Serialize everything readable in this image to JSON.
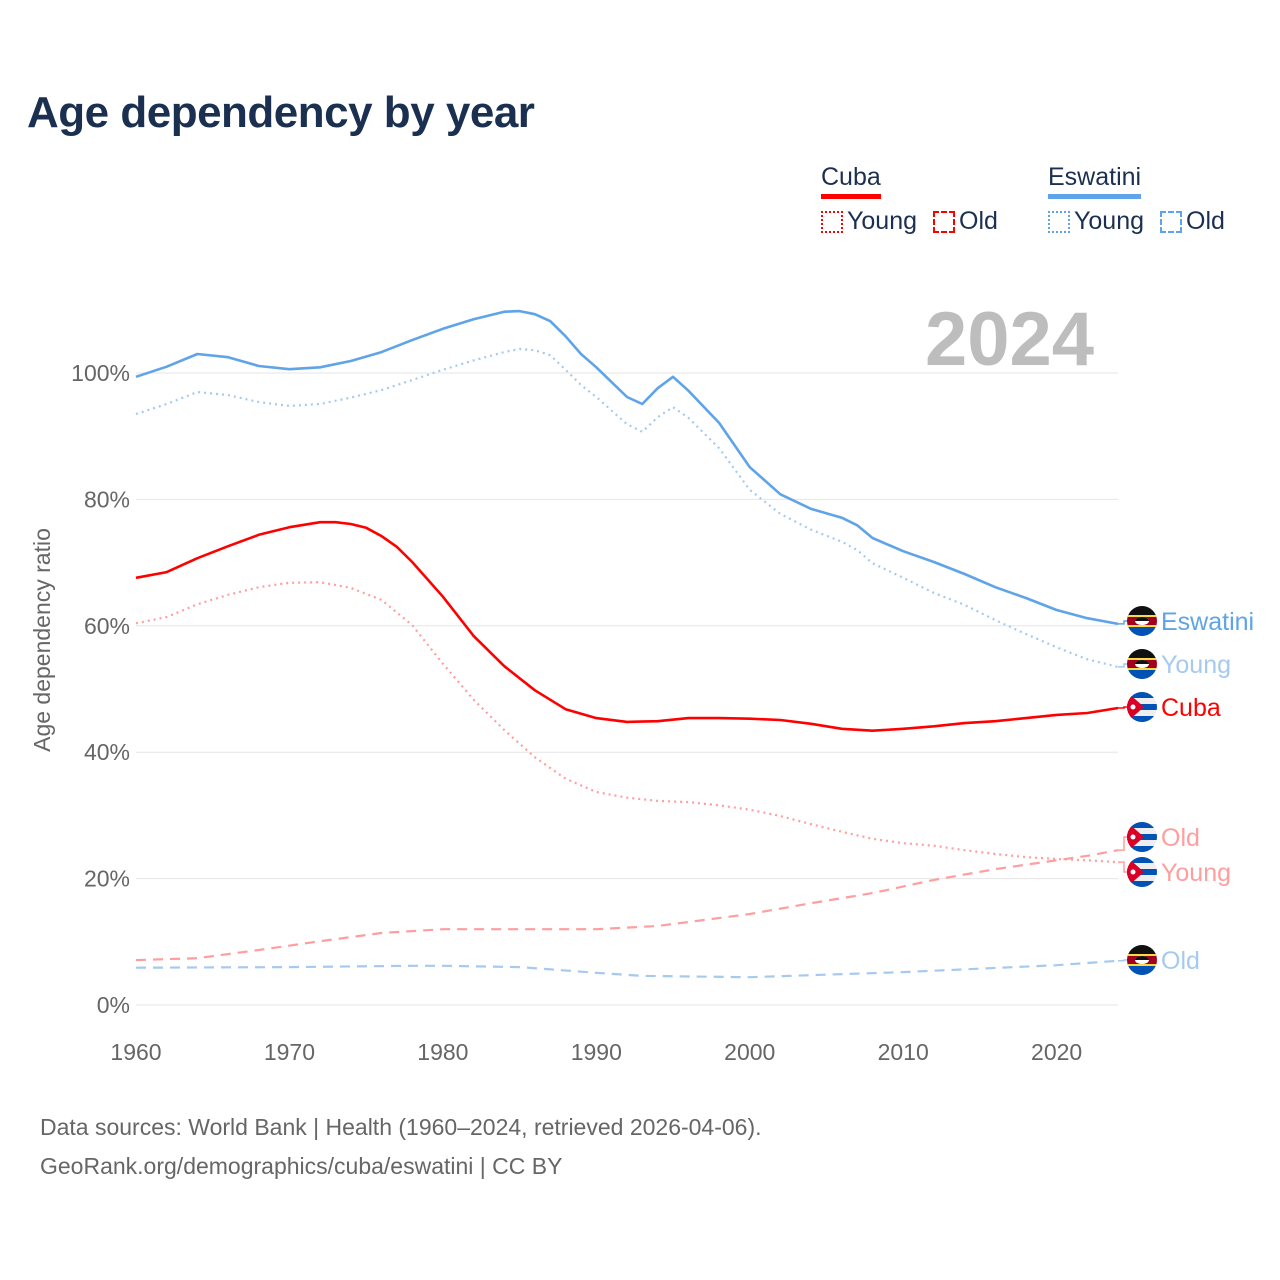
{
  "title": "Age dependency by year",
  "year_label": "2024",
  "legend": [
    {
      "country": "Cuba",
      "color": "#ff0000",
      "items": [
        "Young",
        "Old"
      ]
    },
    {
      "country": "Eswatini",
      "color": "#5fa3e8",
      "items": [
        "Young",
        "Old"
      ]
    }
  ],
  "source": {
    "line1": "Data sources: World Bank | Health (1960–2024, retrieved 2026-04-06).",
    "line2": "GeoRank.org/demographics/cuba/eswatini | CC BY"
  },
  "chart_data": {
    "type": "line",
    "title": "Age dependency by year",
    "xlabel": "",
    "ylabel": "Age dependency ratio",
    "xlim": [
      1960,
      2024
    ],
    "ylim": [
      0,
      110
    ],
    "xticks": [
      "1960",
      "1970",
      "1980",
      "1990",
      "2000",
      "2010",
      "2020"
    ],
    "yticks": [
      "0%",
      "20%",
      "40%",
      "60%",
      "80%",
      "100%"
    ],
    "grid": true,
    "series": [
      {
        "name": "Eswatini",
        "label": "Eswatini",
        "country": "Eswatini",
        "kind": "total",
        "color": "#5fa3e8",
        "style": "solid",
        "x": [
          1960,
          1962,
          1964,
          1966,
          1968,
          1970,
          1972,
          1974,
          1976,
          1978,
          1980,
          1982,
          1984,
          1985,
          1986,
          1987,
          1988,
          1989,
          1990,
          1992,
          1993,
          1994,
          1995,
          1996,
          1998,
          2000,
          2002,
          2004,
          2006,
          2007,
          2008,
          2010,
          2012,
          2014,
          2016,
          2018,
          2020,
          2022,
          2024
        ],
        "y": [
          99.4,
          101,
          103,
          102.5,
          101.1,
          100.6,
          100.9,
          101.9,
          103.3,
          105.2,
          107,
          108.5,
          109.7,
          109.8,
          109.3,
          108.2,
          105.8,
          103,
          100.9,
          96.2,
          95.1,
          97.6,
          99.4,
          97.2,
          92.1,
          85.1,
          80.8,
          78.5,
          77.1,
          75.9,
          73.9,
          71.8,
          70.1,
          68.2,
          66.1,
          64.4,
          62.5,
          61.2,
          60.3
        ]
      },
      {
        "name": "Eswatini Young",
        "label": "Young",
        "country": "Eswatini",
        "kind": "young",
        "color": "#a6c9f0",
        "style": "dotted",
        "x": [
          1960,
          1962,
          1964,
          1966,
          1968,
          1970,
          1972,
          1974,
          1976,
          1978,
          1980,
          1982,
          1984,
          1985,
          1986,
          1987,
          1988,
          1989,
          1990,
          1992,
          1993,
          1994,
          1995,
          1996,
          1998,
          2000,
          2002,
          2004,
          2006,
          2007,
          2008,
          2010,
          2012,
          2014,
          2016,
          2018,
          2020,
          2022,
          2024
        ],
        "y": [
          93.5,
          95.1,
          97,
          96.5,
          95.4,
          94.8,
          95.1,
          96.1,
          97.3,
          98.9,
          100.5,
          102,
          103.3,
          103.8,
          103.6,
          102.8,
          100.5,
          98.1,
          96.2,
          91.9,
          90.7,
          93,
          94.6,
          92.9,
          88.1,
          81.5,
          77.7,
          75.2,
          73.3,
          72,
          69.9,
          67.6,
          65.2,
          63.3,
          60.9,
          58.7,
          56.6,
          54.7,
          53.5
        ]
      },
      {
        "name": "Cuba",
        "label": "Cuba",
        "country": "Cuba",
        "kind": "total",
        "color": "#ff0000",
        "style": "solid",
        "x": [
          1960,
          1962,
          1964,
          1966,
          1968,
          1970,
          1972,
          1973,
          1974,
          1975,
          1976,
          1977,
          1978,
          1980,
          1982,
          1984,
          1986,
          1988,
          1990,
          1992,
          1994,
          1996,
          1998,
          2000,
          2002,
          2004,
          2006,
          2008,
          2010,
          2012,
          2014,
          2016,
          2018,
          2020,
          2022,
          2024
        ],
        "y": [
          67.6,
          68.5,
          70.7,
          72.6,
          74.4,
          75.6,
          76.4,
          76.4,
          76.1,
          75.5,
          74.2,
          72.5,
          70.1,
          64.6,
          58.4,
          53.6,
          49.8,
          46.8,
          45.4,
          44.8,
          44.9,
          45.4,
          45.4,
          45.3,
          45.1,
          44.5,
          43.7,
          43.4,
          43.7,
          44.1,
          44.6,
          44.9,
          45.4,
          45.9,
          46.2,
          47
        ]
      },
      {
        "name": "Cuba Old",
        "label": "Old",
        "country": "Cuba",
        "kind": "old",
        "color": "#ff9e9e",
        "style": "dashed",
        "x": [
          1960,
          1964,
          1968,
          1972,
          1976,
          1980,
          1990,
          1994,
          2000,
          2004,
          2008,
          2012,
          2016,
          2020,
          2022,
          2024
        ],
        "y": [
          7.1,
          7.4,
          8.7,
          10.1,
          11.4,
          12,
          12,
          12.5,
          14.4,
          16.1,
          17.7,
          19.8,
          21.5,
          22.9,
          23.6,
          24.5
        ]
      },
      {
        "name": "Cuba Young",
        "label": "Young",
        "country": "Cuba",
        "kind": "young",
        "color": "#ff9e9e",
        "style": "dotted",
        "x": [
          1960,
          1962,
          1964,
          1966,
          1968,
          1970,
          1972,
          1974,
          1976,
          1978,
          1980,
          1982,
          1984,
          1986,
          1988,
          1990,
          1992,
          1994,
          1996,
          1998,
          2000,
          2002,
          2004,
          2006,
          2008,
          2010,
          2012,
          2014,
          2016,
          2018,
          2020,
          2022,
          2024
        ],
        "y": [
          60.4,
          61.4,
          63.4,
          64.9,
          66.1,
          66.8,
          66.9,
          66,
          64.1,
          60.1,
          54,
          48.3,
          43.5,
          39.2,
          35.8,
          33.7,
          32.8,
          32.3,
          32.1,
          31.6,
          30.9,
          29.9,
          28.6,
          27.4,
          26.3,
          25.6,
          25.2,
          24.5,
          23.9,
          23.4,
          23.1,
          22.9,
          22.6
        ]
      },
      {
        "name": "Eswatini Old",
        "label": "Old",
        "country": "Eswatini",
        "kind": "old",
        "color": "#a6c9f0",
        "style": "dashed",
        "x": [
          1960,
          1970,
          1978,
          1980,
          1985,
          1990,
          1993,
          2000,
          2010,
          2020,
          2024
        ],
        "y": [
          5.9,
          6.0,
          6.2,
          6.2,
          6.0,
          5.1,
          4.6,
          4.4,
          5.2,
          6.3,
          7.0
        ]
      }
    ]
  }
}
